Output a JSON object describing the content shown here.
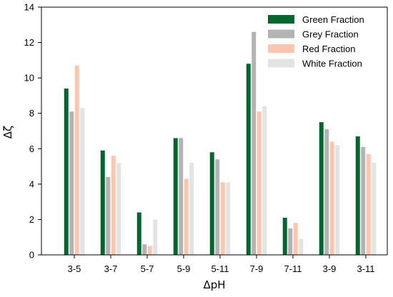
{
  "chart_data": {
    "type": "bar",
    "xlabel": "ΔpH",
    "ylabel": "Δζ",
    "ylim": [
      0,
      14
    ],
    "yticks": [
      0,
      2,
      4,
      6,
      8,
      10,
      12,
      14
    ],
    "grid": false,
    "legend_position": "top-right",
    "categories": [
      "3-5",
      "3-7",
      "5-7",
      "5-9",
      "5-11",
      "7-9",
      "7-11",
      "3-9",
      "3-11"
    ],
    "series": [
      {
        "name": "Green Fraction",
        "color": "#00682f",
        "values": [
          9.4,
          5.9,
          2.4,
          6.6,
          5.8,
          10.8,
          2.1,
          7.5,
          6.7
        ]
      },
      {
        "name": "Grey Fraction",
        "color": "#b3b3b3",
        "values": [
          8.1,
          4.4,
          0.6,
          6.6,
          5.4,
          12.6,
          1.5,
          7.1,
          6.1
        ]
      },
      {
        "name": "Red Fraction",
        "color": "#fdc5ad",
        "values": [
          10.7,
          5.6,
          0.5,
          4.3,
          4.1,
          8.1,
          1.8,
          6.4,
          5.7
        ]
      },
      {
        "name": "White Fraction",
        "color": "#e3e3e3",
        "values": [
          8.3,
          5.2,
          2.0,
          5.2,
          4.1,
          8.4,
          0.9,
          6.2,
          5.2
        ]
      }
    ]
  }
}
